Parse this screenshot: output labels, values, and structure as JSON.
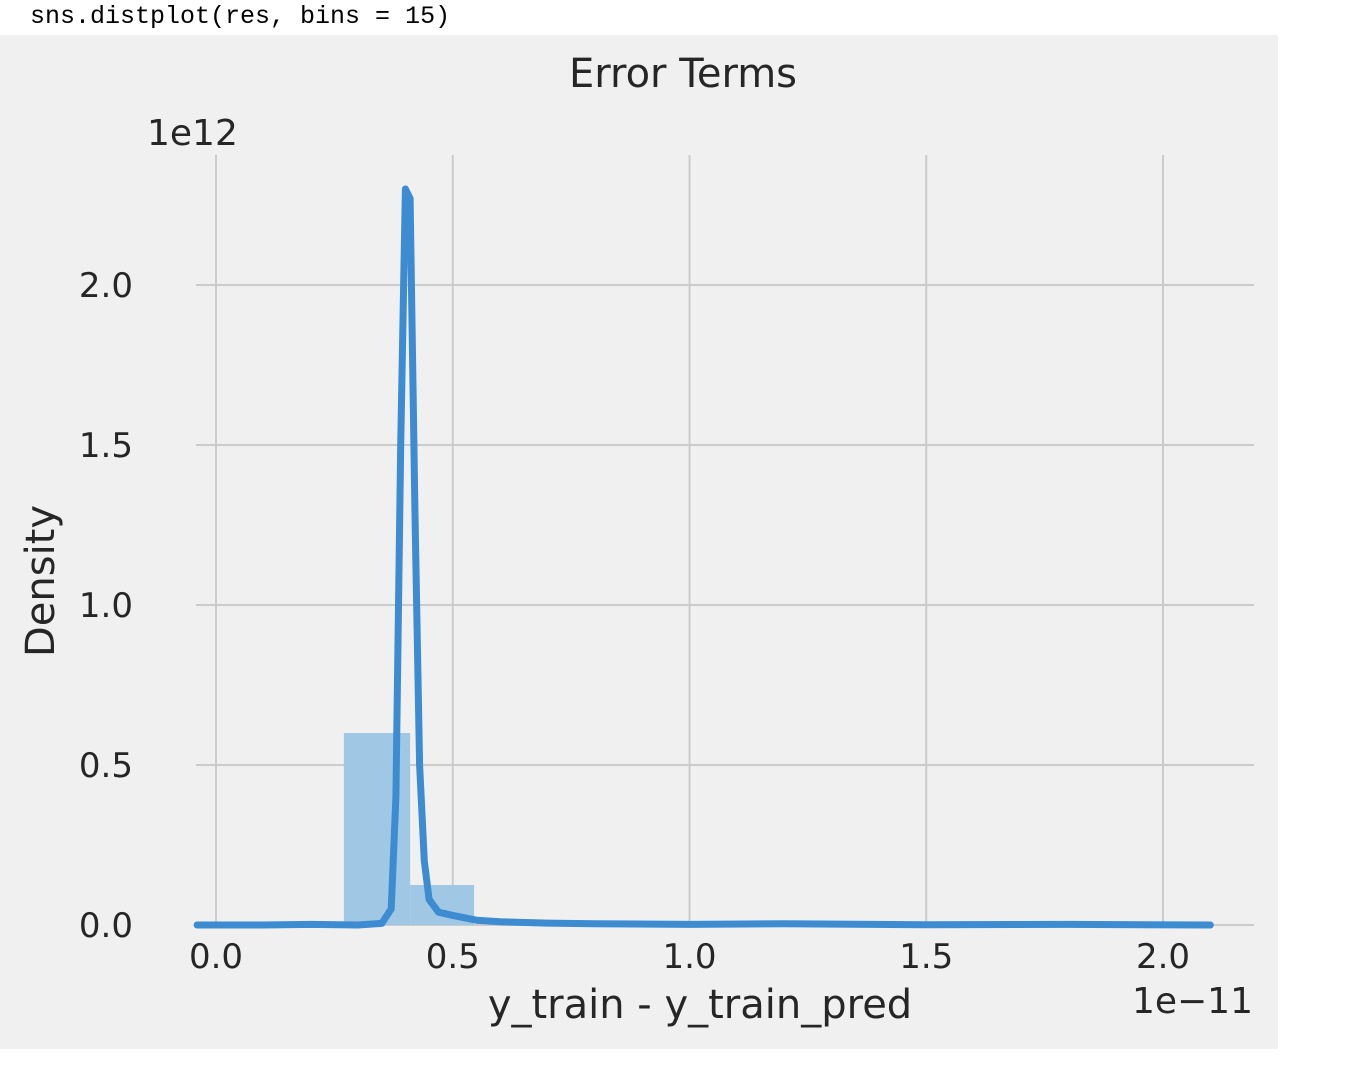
{
  "cell": {
    "code": "sns.distplot(res, bins = 15)"
  },
  "chart_data": {
    "type": "bar",
    "title": "Error Terms",
    "xlabel": "y_train - y_train_pred",
    "ylabel": "Density",
    "x_offset_text": "1e−11",
    "y_offset_text": "1e12",
    "xlim": [
      -0.05,
      2.1
    ],
    "ylim": [
      0,
      2.4
    ],
    "x_ticks": [
      0.0,
      0.5,
      1.0,
      1.5,
      2.0
    ],
    "x_tick_labels": [
      "0.0",
      "0.5",
      "1.0",
      "1.5",
      "2.0"
    ],
    "y_ticks": [
      0.0,
      0.5,
      1.0,
      1.5,
      2.0
    ],
    "y_tick_labels": [
      "0.0",
      "0.5",
      "1.0",
      "1.5",
      "2.0"
    ],
    "grid": true,
    "bins": [
      {
        "x0": 0.27,
        "x1": 0.41,
        "value": 0.6
      },
      {
        "x0": 0.41,
        "x1": 0.545,
        "value": 0.125
      }
    ],
    "kde": {
      "x": [
        -0.04,
        0.1,
        0.2,
        0.3,
        0.35,
        0.37,
        0.38,
        0.39,
        0.4,
        0.41,
        0.42,
        0.43,
        0.44,
        0.45,
        0.47,
        0.5,
        0.55,
        0.6,
        0.7,
        0.8,
        1.0,
        1.2,
        1.5,
        1.8,
        2.1
      ],
      "y": [
        0.0,
        0.0,
        0.002,
        0.0,
        0.005,
        0.05,
        0.4,
        1.5,
        2.3,
        2.27,
        1.3,
        0.5,
        0.2,
        0.08,
        0.04,
        0.03,
        0.015,
        0.01,
        0.006,
        0.004,
        0.002,
        0.004,
        0.001,
        0.002,
        0.0
      ]
    },
    "colors": {
      "background": "#f0f0f0",
      "grid": "#cbcbcb",
      "bar": "#a0c8e4",
      "line": "#3d8bd0",
      "text": "#262626"
    }
  }
}
